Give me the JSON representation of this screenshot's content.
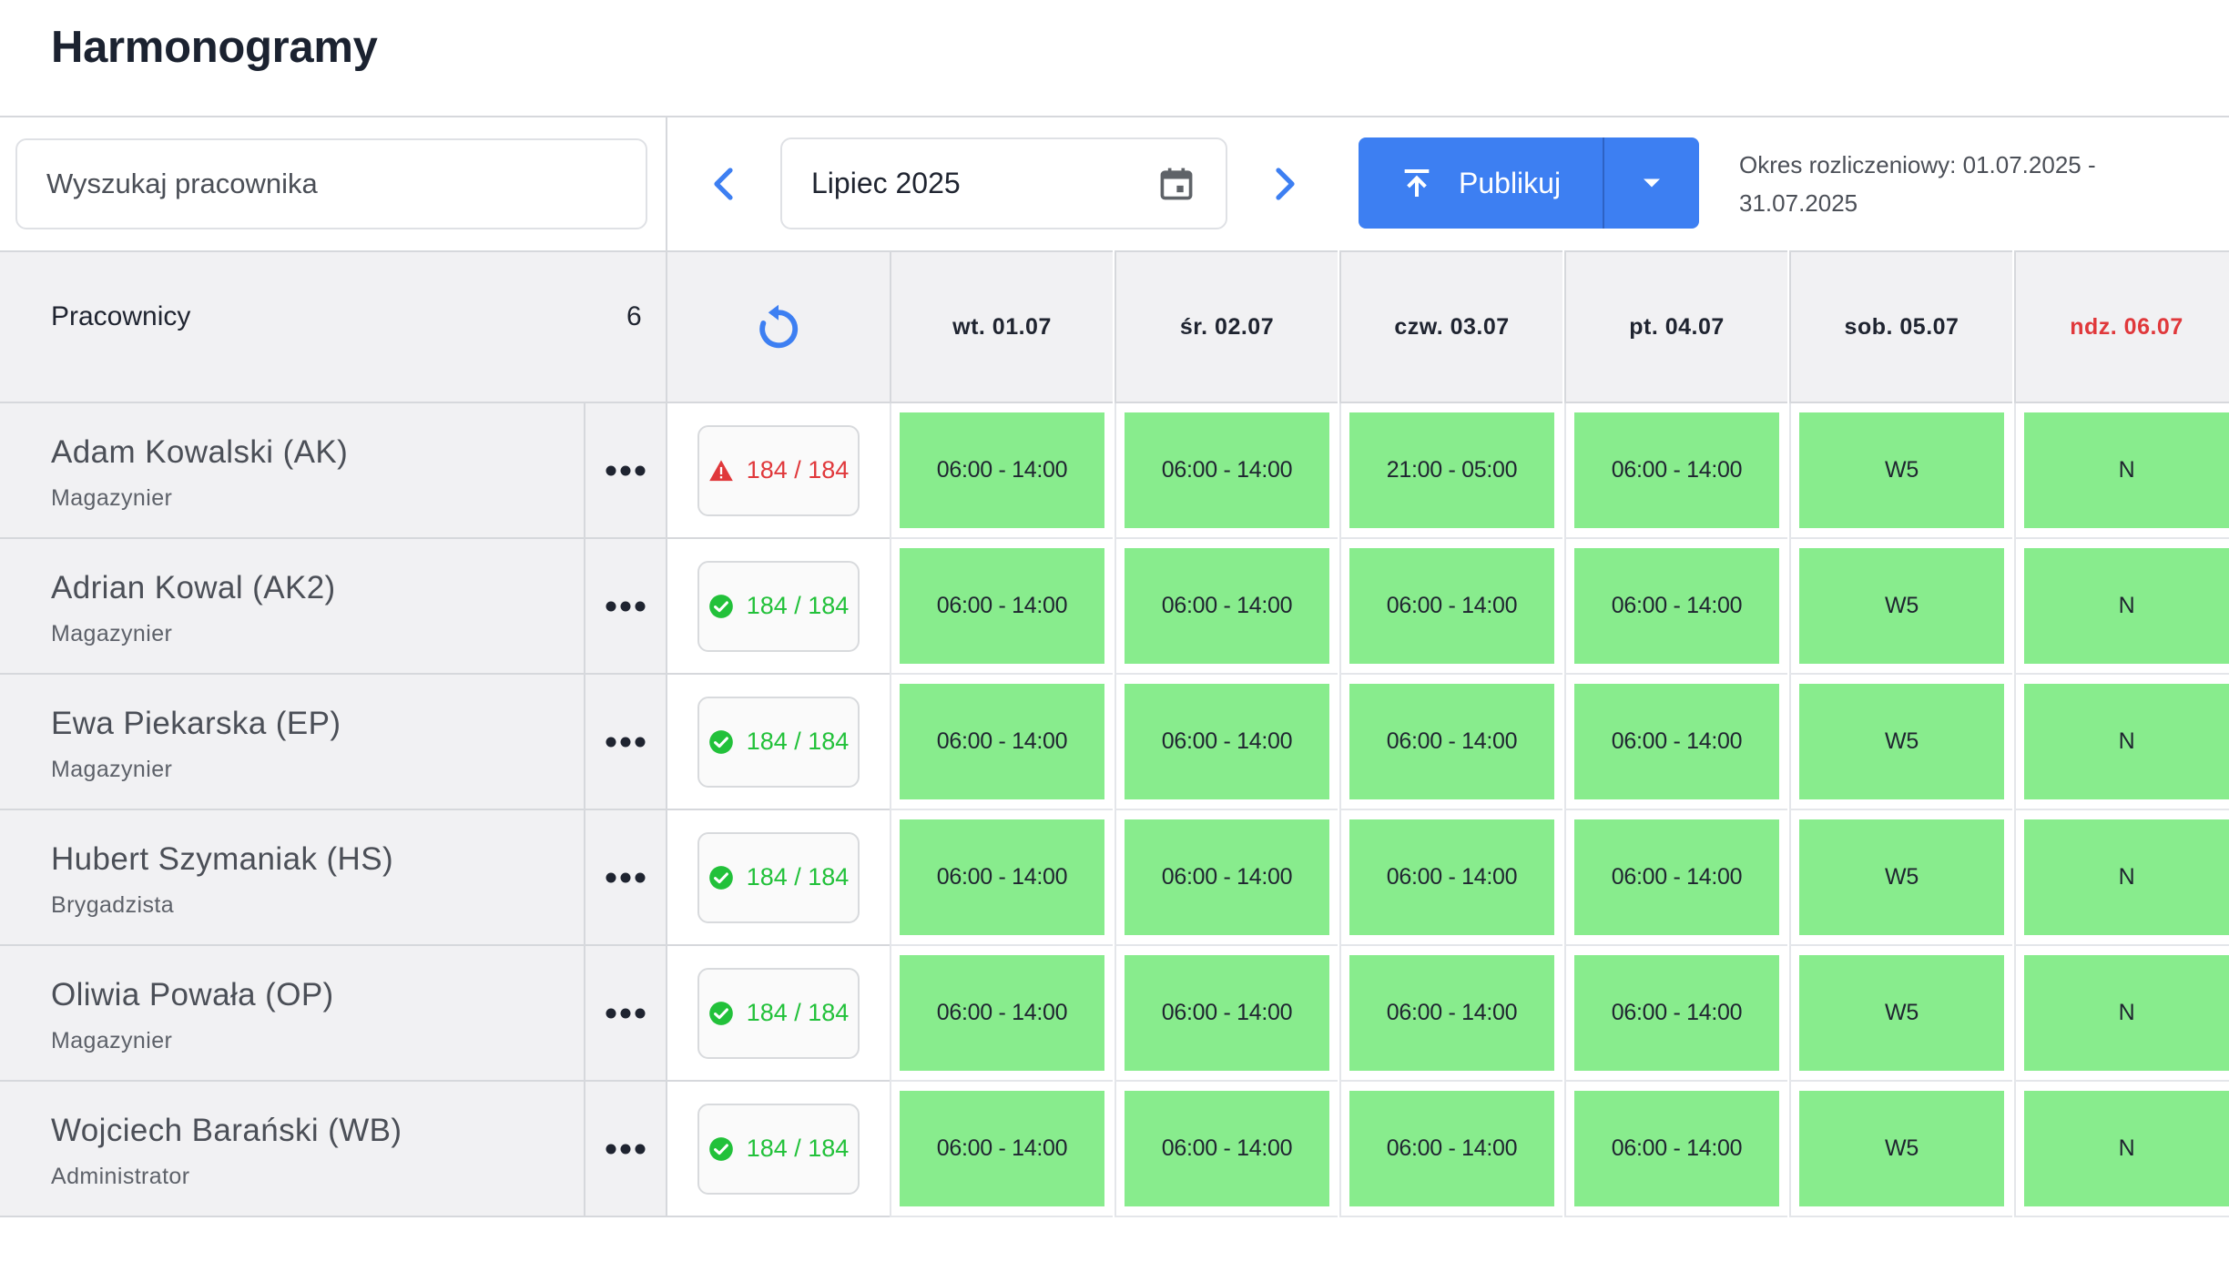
{
  "header": {
    "title": "Harmonogramy"
  },
  "toolbar": {
    "search_placeholder": "Wyszukaj pracownika",
    "month": "Lipiec 2025",
    "publish_label": "Publikuj",
    "period_text": "Okres rozliczeniowy: 01.07.2025 - 31.07.2025",
    "icons": {
      "prev": "chevron-left-icon",
      "next": "chevron-right-icon",
      "calendar": "calendar-icon",
      "publish": "upload-icon",
      "dropdown": "caret-down-icon"
    }
  },
  "grid": {
    "employees_header": "Pracownicy",
    "employees_count": "6",
    "days": [
      {
        "label": "wt. 01.07",
        "color": "#1f2430"
      },
      {
        "label": "śr. 02.07",
        "color": "#1f2430"
      },
      {
        "label": "czw. 03.07",
        "color": "#1f2430"
      },
      {
        "label": "pt. 04.07",
        "color": "#1f2430"
      },
      {
        "label": "sob. 05.07",
        "color": "#1f2430"
      },
      {
        "label": "ndz. 06.07",
        "color": "#e0383b"
      }
    ],
    "rows": [
      {
        "name": "Adam Kowalski (AK)",
        "role": "Magazynier",
        "hours": "184 / 184",
        "status": "warn",
        "shifts": [
          "06:00 - 14:00",
          "06:00 - 14:00",
          "21:00 - 05:00",
          "06:00 - 14:00",
          "W5",
          "N"
        ]
      },
      {
        "name": "Adrian Kowal (AK2)",
        "role": "Magazynier",
        "hours": "184 / 184",
        "status": "ok",
        "shifts": [
          "06:00 - 14:00",
          "06:00 - 14:00",
          "06:00 - 14:00",
          "06:00 - 14:00",
          "W5",
          "N"
        ]
      },
      {
        "name": "Ewa Piekarska (EP)",
        "role": "Magazynier",
        "hours": "184 / 184",
        "status": "ok",
        "shifts": [
          "06:00 - 14:00",
          "06:00 - 14:00",
          "06:00 - 14:00",
          "06:00 - 14:00",
          "W5",
          "N"
        ]
      },
      {
        "name": "Hubert Szymaniak (HS)",
        "role": "Brygadzista",
        "hours": "184 / 184",
        "status": "ok",
        "shifts": [
          "06:00 - 14:00",
          "06:00 - 14:00",
          "06:00 - 14:00",
          "06:00 - 14:00",
          "W5",
          "N"
        ]
      },
      {
        "name": "Oliwia Powała (OP)",
        "role": "Magazynier",
        "hours": "184 / 184",
        "status": "ok",
        "shifts": [
          "06:00 - 14:00",
          "06:00 - 14:00",
          "06:00 - 14:00",
          "06:00 - 14:00",
          "W5",
          "N"
        ]
      },
      {
        "name": "Wojciech Barański (WB)",
        "role": "Administrator",
        "hours": "184 / 184",
        "status": "ok",
        "shifts": [
          "06:00 - 14:00",
          "06:00 - 14:00",
          "06:00 - 14:00",
          "06:00 - 14:00",
          "W5",
          "N"
        ]
      }
    ]
  },
  "colors": {
    "accent": "#3d7ff2",
    "shift_bg": "#88ec8d",
    "ok": "#22c13a",
    "warn": "#e0383b"
  }
}
